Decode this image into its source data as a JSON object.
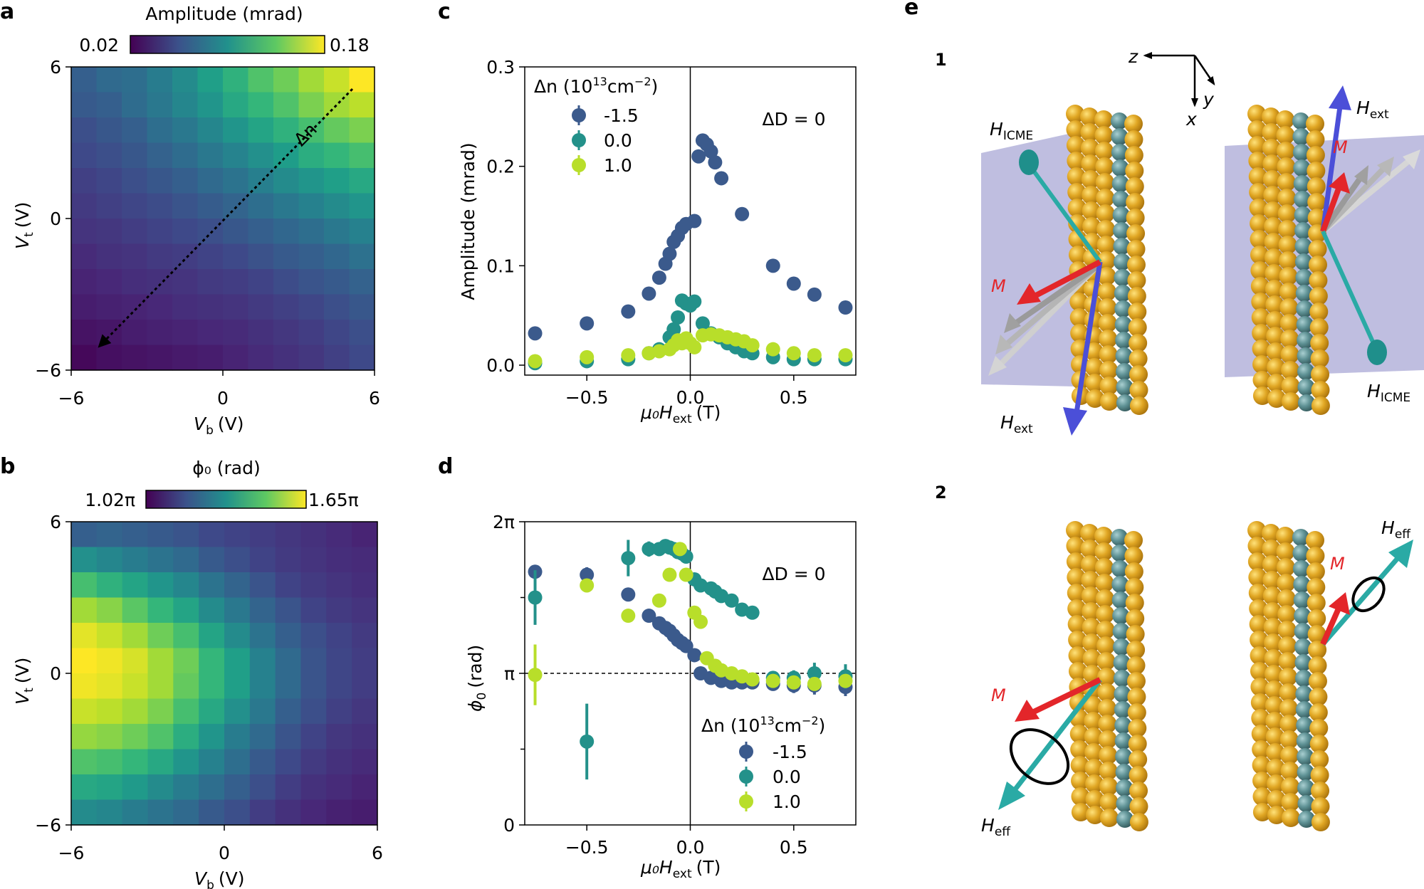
{
  "panel_letters": [
    "a",
    "b",
    "c",
    "d",
    "e"
  ],
  "colors": {
    "series_dark": "#3b5a8c",
    "series_teal": "#23918a",
    "series_lime": "#b8de2a",
    "plane": "#a9a8d6",
    "gold": "#dba325",
    "slate": "#5d8e91",
    "arrow_red": "#e3262a",
    "arrow_blue": "#4b4fd8",
    "arrow_teal": "#2aaaa5",
    "arrow_gray": "#b0b0b0"
  },
  "chart_data": [
    {
      "id": "a",
      "type": "heatmap",
      "title": "Amplitude (mrad)",
      "colorbar_min_label": "0.02",
      "colorbar_max_label": "0.18",
      "xlabel_main": "V",
      "xlabel_sub": "b",
      "xlabel_unit": "(V)",
      "ylabel_main": "V",
      "ylabel_sub": "t",
      "ylabel_unit": "(V)",
      "xlim": [
        -6,
        6
      ],
      "ylim": [
        -6,
        6
      ],
      "xticks": [
        "−6",
        "0",
        "6"
      ],
      "yticks": [
        "−6",
        "0",
        "6"
      ],
      "annotation": "Δn",
      "grid": [
        [
          0.3,
          0.34,
          0.36,
          0.42,
          0.48,
          0.56,
          0.64,
          0.72,
          0.78,
          0.86,
          0.92,
          1.0
        ],
        [
          0.28,
          0.3,
          0.35,
          0.4,
          0.46,
          0.52,
          0.6,
          0.66,
          0.72,
          0.8,
          0.86,
          0.9
        ],
        [
          0.24,
          0.27,
          0.3,
          0.36,
          0.4,
          0.46,
          0.52,
          0.58,
          0.64,
          0.7,
          0.76,
          0.8
        ],
        [
          0.22,
          0.24,
          0.27,
          0.31,
          0.35,
          0.4,
          0.45,
          0.5,
          0.55,
          0.62,
          0.66,
          0.7
        ],
        [
          0.19,
          0.21,
          0.24,
          0.27,
          0.3,
          0.34,
          0.38,
          0.43,
          0.48,
          0.52,
          0.56,
          0.6
        ],
        [
          0.17,
          0.19,
          0.21,
          0.23,
          0.26,
          0.29,
          0.32,
          0.36,
          0.4,
          0.44,
          0.48,
          0.52
        ],
        [
          0.15,
          0.16,
          0.18,
          0.2,
          0.22,
          0.24,
          0.27,
          0.3,
          0.33,
          0.36,
          0.4,
          0.44
        ],
        [
          0.12,
          0.14,
          0.15,
          0.17,
          0.18,
          0.2,
          0.22,
          0.25,
          0.28,
          0.3,
          0.33,
          0.37
        ],
        [
          0.1,
          0.11,
          0.13,
          0.14,
          0.15,
          0.17,
          0.18,
          0.2,
          0.23,
          0.26,
          0.28,
          0.31
        ],
        [
          0.08,
          0.09,
          0.1,
          0.11,
          0.13,
          0.14,
          0.15,
          0.17,
          0.19,
          0.21,
          0.24,
          0.27
        ],
        [
          0.05,
          0.06,
          0.08,
          0.09,
          0.1,
          0.11,
          0.12,
          0.14,
          0.16,
          0.18,
          0.21,
          0.24
        ],
        [
          0.02,
          0.04,
          0.05,
          0.06,
          0.07,
          0.08,
          0.1,
          0.12,
          0.14,
          0.16,
          0.19,
          0.22
        ]
      ]
    },
    {
      "id": "b",
      "type": "heatmap",
      "title": "ϕ₀ (rad)",
      "colorbar_min_label": "1.02π",
      "colorbar_max_label": "1.65π",
      "xlabel_main": "V",
      "xlabel_sub": "b",
      "xlabel_unit": "(V)",
      "ylabel_main": "V",
      "ylabel_sub": "t",
      "ylabel_unit": "(V)",
      "xlim": [
        -6,
        6
      ],
      "ylim": [
        -6,
        6
      ],
      "xticks": [
        "−6",
        "0",
        "6"
      ],
      "yticks": [
        "−6",
        "0",
        "6"
      ],
      "grid": [
        [
          0.3,
          0.32,
          0.3,
          0.28,
          0.26,
          0.22,
          0.2,
          0.18,
          0.16,
          0.14,
          0.12,
          0.1
        ],
        [
          0.5,
          0.46,
          0.42,
          0.38,
          0.34,
          0.28,
          0.24,
          0.2,
          0.17,
          0.15,
          0.13,
          0.12
        ],
        [
          0.7,
          0.64,
          0.58,
          0.52,
          0.46,
          0.38,
          0.32,
          0.26,
          0.2,
          0.17,
          0.15,
          0.13
        ],
        [
          0.86,
          0.82,
          0.74,
          0.66,
          0.58,
          0.48,
          0.4,
          0.32,
          0.26,
          0.2,
          0.17,
          0.15
        ],
        [
          0.96,
          0.92,
          0.86,
          0.78,
          0.7,
          0.58,
          0.48,
          0.38,
          0.3,
          0.24,
          0.2,
          0.17
        ],
        [
          1.0,
          0.98,
          0.94,
          0.86,
          0.78,
          0.66,
          0.56,
          0.44,
          0.34,
          0.26,
          0.21,
          0.18
        ],
        [
          0.98,
          0.96,
          0.92,
          0.86,
          0.76,
          0.66,
          0.56,
          0.44,
          0.34,
          0.26,
          0.21,
          0.18
        ],
        [
          0.92,
          0.9,
          0.86,
          0.8,
          0.7,
          0.6,
          0.5,
          0.4,
          0.3,
          0.24,
          0.19,
          0.16
        ],
        [
          0.84,
          0.82,
          0.78,
          0.72,
          0.62,
          0.52,
          0.42,
          0.34,
          0.26,
          0.2,
          0.16,
          0.14
        ],
        [
          0.72,
          0.7,
          0.66,
          0.6,
          0.52,
          0.44,
          0.36,
          0.28,
          0.22,
          0.17,
          0.14,
          0.12
        ],
        [
          0.6,
          0.58,
          0.54,
          0.48,
          0.42,
          0.36,
          0.3,
          0.24,
          0.18,
          0.14,
          0.12,
          0.1
        ],
        [
          0.48,
          0.46,
          0.42,
          0.38,
          0.34,
          0.28,
          0.24,
          0.18,
          0.14,
          0.11,
          0.09,
          0.08
        ]
      ]
    },
    {
      "id": "c",
      "type": "scatter",
      "xlabel": "μ₀H",
      "xlabel_sub": "ext",
      "xlabel_unit": "(T)",
      "ylabel": "Amplitude (mrad)",
      "xlim": [
        -0.8,
        0.8
      ],
      "ylim": [
        -0.01,
        0.3
      ],
      "xticks": [
        -0.5,
        0.0,
        0.5
      ],
      "xtick_labels": [
        "−0.5",
        "0.0",
        "0.5"
      ],
      "yticks": [
        0.0,
        0.1,
        0.2,
        0.3
      ],
      "ytick_labels": [
        "0.0",
        "0.1",
        "0.2",
        "0.3"
      ],
      "annotation": "ΔD = 0",
      "legend_title": "Δn (10",
      "legend_title_sup": "13",
      "legend_title_tail": "cm",
      "legend_title_sup2": "−2",
      "legend_title_end": ")",
      "legend_position": "upper-left",
      "series": [
        {
          "name": "-1.5",
          "x": [
            -0.75,
            -0.5,
            -0.3,
            -0.2,
            -0.15,
            -0.12,
            -0.1,
            -0.08,
            -0.06,
            -0.04,
            -0.02,
            0.02,
            0.04,
            0.06,
            0.08,
            0.1,
            0.12,
            0.15,
            0.25,
            0.4,
            0.5,
            0.6,
            0.75
          ],
          "y": [
            0.032,
            0.042,
            0.054,
            0.072,
            0.088,
            0.102,
            0.112,
            0.124,
            0.13,
            0.138,
            0.142,
            0.145,
            0.21,
            0.226,
            0.222,
            0.215,
            0.204,
            0.188,
            0.152,
            0.1,
            0.082,
            0.071,
            0.058
          ]
        },
        {
          "name": "0.0",
          "x": [
            -0.75,
            -0.5,
            -0.3,
            -0.2,
            -0.15,
            -0.1,
            -0.08,
            -0.06,
            -0.04,
            -0.02,
            0.0,
            0.02,
            0.06,
            0.1,
            0.14,
            0.18,
            0.22,
            0.26,
            0.3,
            0.4,
            0.5,
            0.6,
            0.75
          ],
          "y": [
            0.002,
            0.004,
            0.006,
            0.012,
            0.016,
            0.028,
            0.036,
            0.048,
            0.065,
            0.062,
            0.06,
            0.064,
            0.042,
            0.032,
            0.028,
            0.022,
            0.018,
            0.014,
            0.012,
            0.008,
            0.006,
            0.006,
            0.006
          ]
        },
        {
          "name": "1.0",
          "x": [
            -0.75,
            -0.5,
            -0.3,
            -0.2,
            -0.15,
            -0.1,
            -0.08,
            -0.06,
            -0.04,
            -0.02,
            0.0,
            0.02,
            0.06,
            0.1,
            0.14,
            0.18,
            0.22,
            0.26,
            0.3,
            0.4,
            0.5,
            0.6,
            0.75
          ],
          "y": [
            0.004,
            0.008,
            0.01,
            0.012,
            0.014,
            0.016,
            0.02,
            0.025,
            0.022,
            0.027,
            0.022,
            0.018,
            0.03,
            0.031,
            0.03,
            0.028,
            0.026,
            0.024,
            0.02,
            0.016,
            0.012,
            0.01,
            0.01
          ]
        }
      ]
    },
    {
      "id": "d",
      "type": "scatter",
      "xlabel": "μ₀H",
      "xlabel_sub": "ext",
      "xlabel_unit": "(T)",
      "ylabel_main": "ϕ",
      "ylabel_sub": "0",
      "ylabel_unit": "(rad)",
      "xlim": [
        -0.8,
        0.8
      ],
      "ylim": [
        0,
        2
      ],
      "y_units": "pi",
      "xticks": [
        -0.5,
        0.0,
        0.5
      ],
      "xtick_labels": [
        "−0.5",
        "0.0",
        "0.5"
      ],
      "yticks": [
        0,
        1,
        2
      ],
      "ytick_labels": [
        "0",
        "π",
        "2π"
      ],
      "yticks_minor": [
        0.5,
        1.5
      ],
      "reference_line_y": 1,
      "annotation": "ΔD = 0",
      "legend_title": "Δn (10",
      "legend_title_sup": "13",
      "legend_title_tail": "cm",
      "legend_title_sup2": "−2",
      "legend_title_end": ")",
      "legend_position": "lower-right",
      "series": [
        {
          "name": "-1.5",
          "x": [
            -0.75,
            -0.5,
            -0.3,
            -0.2,
            -0.15,
            -0.12,
            -0.1,
            -0.08,
            -0.06,
            -0.04,
            -0.02,
            0.02,
            0.05,
            0.1,
            0.15,
            0.2,
            0.25,
            0.3,
            0.4,
            0.5,
            0.6,
            0.75
          ],
          "y": [
            1.67,
            1.65,
            1.52,
            1.38,
            1.33,
            1.3,
            1.28,
            1.25,
            1.22,
            1.2,
            1.18,
            1.12,
            1.0,
            0.97,
            0.95,
            0.94,
            0.94,
            0.94,
            0.93,
            0.92,
            0.92,
            0.91
          ],
          "err": [
            0.04,
            0.05,
            0.04,
            0.03,
            0.02,
            0.02,
            0.02,
            0.02,
            0.02,
            0.02,
            0.02,
            0.02,
            0.02,
            0.02,
            0.02,
            0.02,
            0.02,
            0.02,
            0.03,
            0.05,
            0.06,
            0.06
          ]
        },
        {
          "name": "0.0",
          "x": [
            -0.75,
            -0.5,
            -0.3,
            -0.2,
            -0.15,
            -0.12,
            -0.1,
            -0.08,
            -0.06,
            -0.04,
            -0.02,
            0.02,
            0.05,
            0.1,
            0.12,
            0.15,
            0.2,
            0.25,
            0.3,
            0.4,
            0.5,
            0.6,
            0.75
          ],
          "y": [
            1.5,
            0.55,
            1.76,
            1.82,
            1.82,
            1.84,
            1.83,
            1.82,
            1.8,
            1.79,
            1.77,
            1.62,
            1.58,
            1.56,
            1.54,
            1.51,
            1.48,
            1.42,
            1.4,
            0.97,
            0.97,
            1.0,
            0.98
          ],
          "err": [
            0.18,
            0.25,
            0.12,
            0.05,
            0.04,
            0.04,
            0.03,
            0.03,
            0.03,
            0.03,
            0.03,
            0.03,
            0.03,
            0.03,
            0.03,
            0.03,
            0.03,
            0.03,
            0.03,
            0.04,
            0.05,
            0.07,
            0.08
          ]
        },
        {
          "name": "1.0",
          "x": [
            -0.75,
            -0.5,
            -0.3,
            -0.15,
            -0.1,
            -0.05,
            -0.02,
            0.02,
            0.05,
            0.08,
            0.12,
            0.15,
            0.2,
            0.25,
            0.3,
            0.4,
            0.5,
            0.6,
            0.75
          ],
          "y": [
            0.99,
            1.58,
            1.38,
            1.48,
            1.65,
            1.82,
            1.65,
            1.4,
            1.34,
            1.1,
            1.05,
            1.02,
            1.0,
            0.98,
            0.96,
            0.95,
            0.94,
            0.93,
            0.95
          ],
          "err": [
            0.2,
            0.04,
            0.03,
            0.03,
            0.03,
            0.04,
            0.03,
            0.03,
            0.03,
            0.03,
            0.03,
            0.02,
            0.02,
            0.02,
            0.02,
            0.02,
            0.02,
            0.02,
            0.02
          ]
        }
      ]
    }
  ],
  "panel_e": {
    "label_row1": "1",
    "label_row2": "2",
    "axis_z": "z",
    "axis_y": "y",
    "axis_x": "x",
    "H_main": "H",
    "sub_icme": "ICME",
    "sub_ext": "ext",
    "sub_eff": "eff",
    "M_label": "M"
  }
}
